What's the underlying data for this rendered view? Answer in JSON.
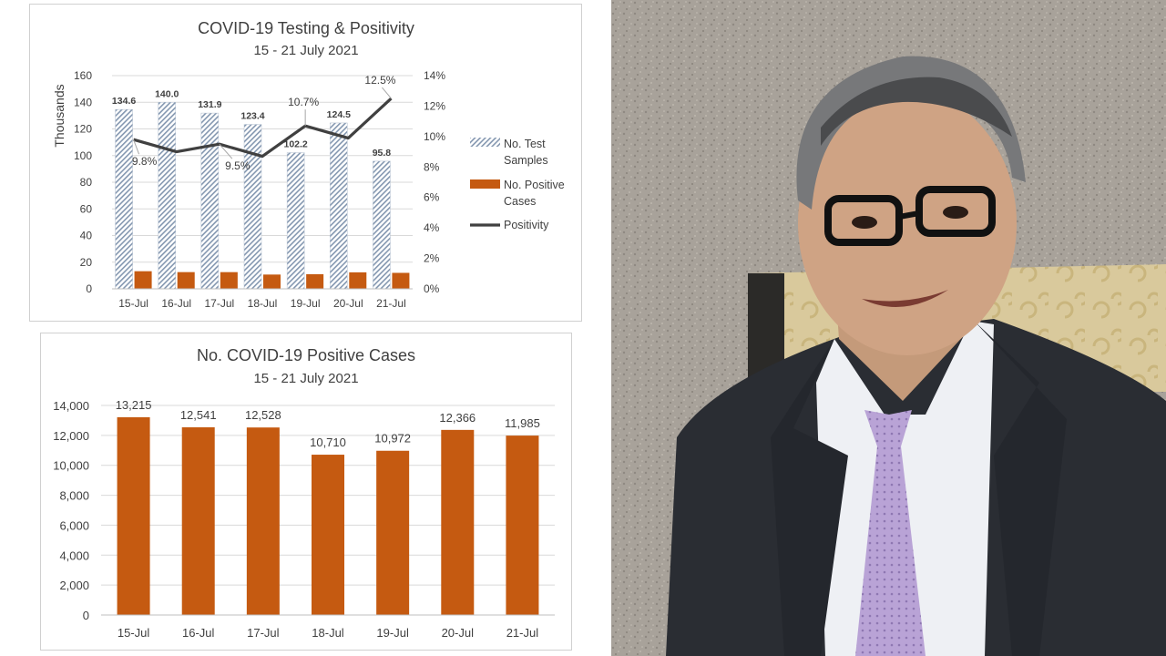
{
  "chart_data": [
    {
      "type": "bar",
      "title": "COVID-19 Testing & Positivity",
      "subtitle": "15 - 21 July 2021",
      "categories": [
        "15-Jul",
        "16-Jul",
        "17-Jul",
        "18-Jul",
        "19-Jul",
        "20-Jul",
        "21-Jul"
      ],
      "ylabel": "Thousands",
      "ylim": [
        0,
        160
      ],
      "yticks": [
        "0",
        "20",
        "40",
        "60",
        "80",
        "100",
        "120",
        "140",
        "160"
      ],
      "y2lim": [
        0,
        14
      ],
      "y2ticks": [
        "0%",
        "2%",
        "4%",
        "6%",
        "8%",
        "10%",
        "12%",
        "14%"
      ],
      "series": [
        {
          "name": "No. Test Samples",
          "kind": "bar",
          "pattern": "hatched",
          "color": "#8497b0",
          "values": [
            134.6,
            140.0,
            131.9,
            123.4,
            102.2,
            124.5,
            95.8
          ],
          "labels": [
            "134.6",
            "140.0",
            "131.9",
            "123.4",
            "102.2",
            "124.5",
            "95.8"
          ]
        },
        {
          "name": "No. Positive Cases",
          "kind": "bar",
          "color": "#c55a11",
          "values": [
            13.215,
            12.541,
            12.528,
            10.71,
            10.972,
            12.366,
            11.985
          ]
        },
        {
          "name": "Positivity",
          "kind": "line",
          "axis": "right",
          "color": "#404040",
          "values": [
            9.8,
            9.0,
            9.5,
            8.7,
            10.7,
            9.9,
            12.5
          ]
        }
      ],
      "annotations": [
        {
          "index": 0,
          "text": "9.8%"
        },
        {
          "index": 2,
          "text": "9.5%"
        },
        {
          "index": 4,
          "text": "10.7%"
        },
        {
          "index": 6,
          "text": "12.5%"
        }
      ],
      "legend_position": "right",
      "grid": true
    },
    {
      "type": "bar",
      "title": "No. COVID-19 Positive Cases",
      "subtitle": "15 - 21 July 2021",
      "categories": [
        "15-Jul",
        "16-Jul",
        "17-Jul",
        "18-Jul",
        "19-Jul",
        "20-Jul",
        "21-Jul"
      ],
      "ylim": [
        0,
        14000
      ],
      "yticks": [
        "0",
        "2,000",
        "4,000",
        "6,000",
        "8,000",
        "10,000",
        "12,000",
        "14,000"
      ],
      "series": [
        {
          "kind": "bar",
          "color": "#c55a11",
          "values": [
            13215,
            12541,
            12528,
            10710,
            10972,
            12366,
            11985
          ],
          "labels": [
            "13,215",
            "12,541",
            "12,528",
            "10,710",
            "10,972",
            "12,366",
            "11,985"
          ]
        }
      ],
      "grid": true
    }
  ],
  "photo": {
    "name": "portrait photo",
    "suit_color": "#2a2d33",
    "shirt_color": "#eef0f4",
    "tie_color": "#b9a3d6",
    "background_color": "#a49e96",
    "chair_color": "#d8c79a"
  }
}
